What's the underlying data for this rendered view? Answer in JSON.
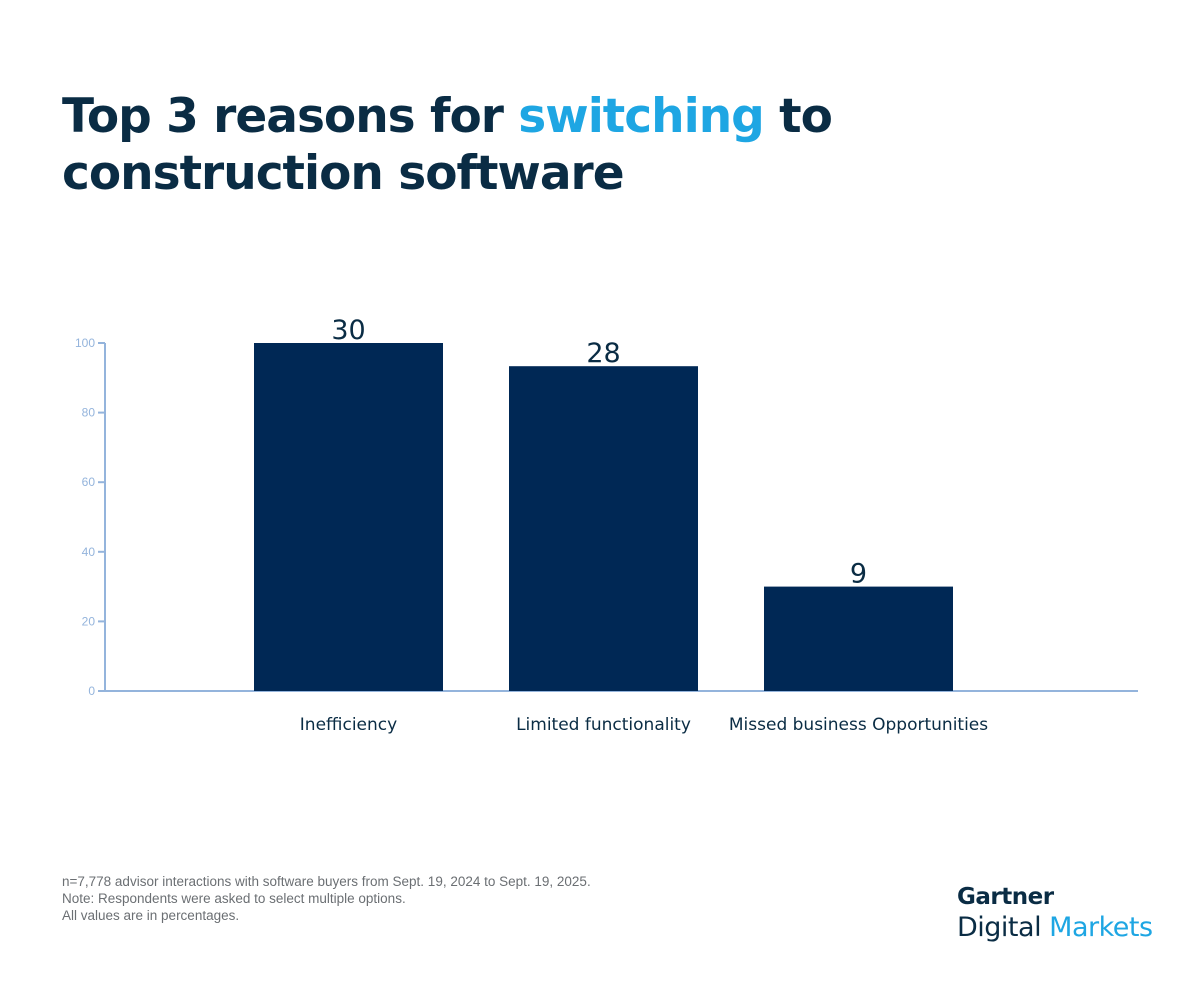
{
  "title": {
    "part1": "Top 3 reasons for ",
    "highlight": "switching",
    "part2": " to construction software"
  },
  "chart_data": {
    "type": "bar",
    "categories": [
      "Inefficiency",
      "Limited functionality",
      "Missed business Opportunities"
    ],
    "values": [
      30,
      28,
      9
    ],
    "data_labels": [
      "30",
      "28",
      "9"
    ],
    "ylim": [
      0,
      100
    ],
    "yticks": [
      "0",
      "20",
      "40",
      "60",
      "80",
      "100"
    ],
    "xlabel": "",
    "ylabel": "",
    "grid": false,
    "bar_color": "#002855",
    "axis_color": "#94b4dc"
  },
  "notes": [
    "n=7,778 advisor interactions with software buyers from Sept. 19, 2024 to Sept. 19, 2025.",
    "Note: Respondents were asked to select multiple options.",
    "All values are in percentages."
  ],
  "logo": {
    "line1": "Gartner",
    "line2a": "Digital",
    "line2b": "Markets"
  },
  "colors": {
    "title": "#0a2c44",
    "accent": "#1ea6e3"
  }
}
